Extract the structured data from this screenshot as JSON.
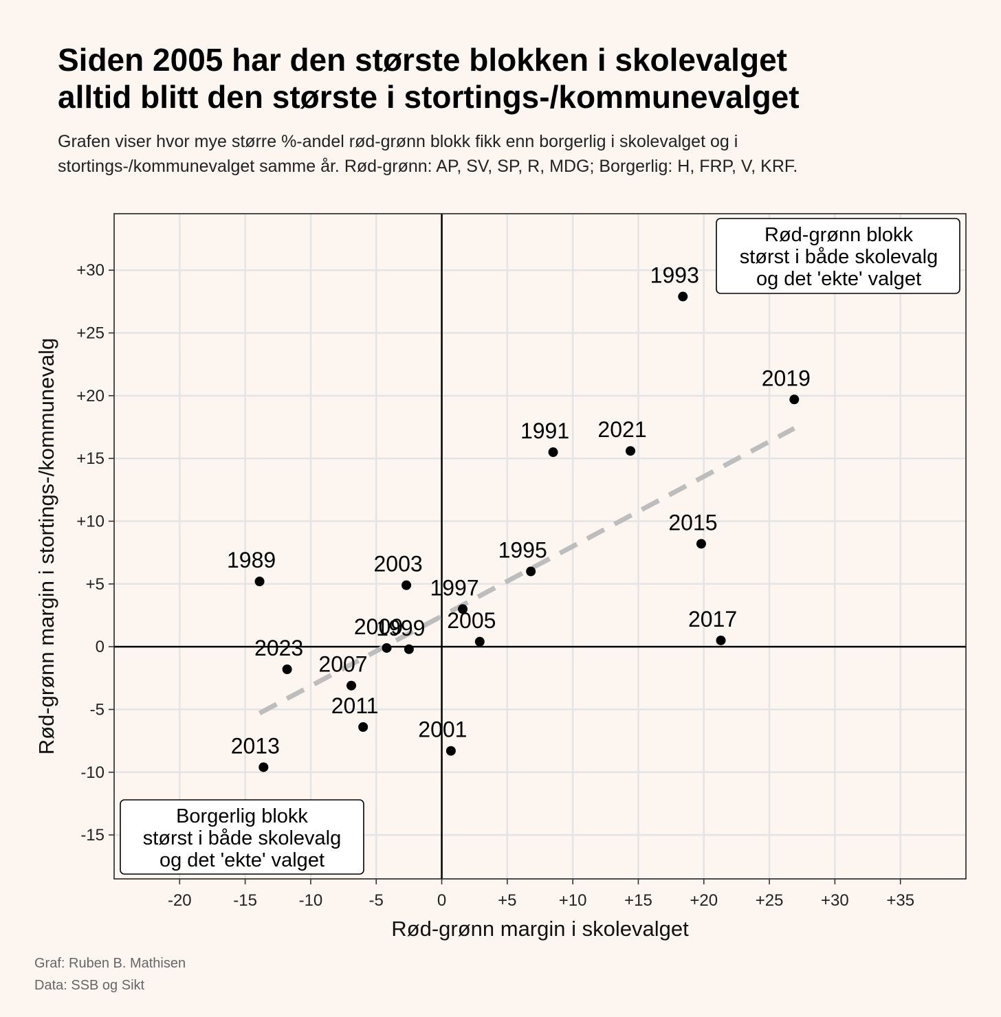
{
  "title": {
    "line1": "Siden 2005 har den største blokken i skolevalget",
    "line2": "alltid blitt den største i stortings-/kommunevalget"
  },
  "subtitle": {
    "line1": "Grafen viser hvor mye større %-andel rød-grønn blokk fikk enn borgerlig i skolevalget og i",
    "line2": "stortings-/kommunevalget samme år. Rød-grønn: AP, SV, SP, R, MDG; Borgerlig: H, FRP, V, KRF."
  },
  "caption": {
    "author": "Graf: Ruben B. Mathisen",
    "source": "Data: SSB og Sikt"
  },
  "chart_data": {
    "type": "scatter",
    "xlabel": "Rød-grønn margin i skolevalget",
    "ylabel": "Rød-grønn margin i stortings-/kommunevalg",
    "xlim": [
      -25,
      40
    ],
    "ylim": [
      -18.5,
      34.5
    ],
    "xticks": [
      -20,
      -15,
      -10,
      -5,
      0,
      5,
      10,
      15,
      20,
      25,
      30,
      35
    ],
    "xtick_labels": [
      "-20",
      "-15",
      "-10",
      "-5",
      "0",
      "+5",
      "+10",
      "+15",
      "+20",
      "+25",
      "+30",
      "+35"
    ],
    "yticks": [
      -15,
      -10,
      -5,
      0,
      5,
      10,
      15,
      20,
      25,
      30
    ],
    "ytick_labels": [
      "-15",
      "-10",
      "-5",
      "0",
      "+5",
      "+10",
      "+15",
      "+20",
      "+25",
      "+30"
    ],
    "grid": true,
    "points": [
      {
        "label": "1989",
        "x": -13.9,
        "y": 5.2
      },
      {
        "label": "1991",
        "x": 8.5,
        "y": 15.5
      },
      {
        "label": "1993",
        "x": 18.4,
        "y": 27.9
      },
      {
        "label": "1995",
        "x": 6.8,
        "y": 6.0
      },
      {
        "label": "1997",
        "x": 1.6,
        "y": 3.0
      },
      {
        "label": "1999",
        "x": -2.5,
        "y": -0.2
      },
      {
        "label": "2001",
        "x": 0.7,
        "y": -8.3
      },
      {
        "label": "2003",
        "x": -2.7,
        "y": 4.9
      },
      {
        "label": "2005",
        "x": 2.9,
        "y": 0.4
      },
      {
        "label": "2007",
        "x": -6.9,
        "y": -3.1
      },
      {
        "label": "2009",
        "x": -4.2,
        "y": -0.1
      },
      {
        "label": "2011",
        "x": -6.0,
        "y": -6.4
      },
      {
        "label": "2013",
        "x": -13.6,
        "y": -9.6
      },
      {
        "label": "2015",
        "x": 19.8,
        "y": 8.2
      },
      {
        "label": "2017",
        "x": 21.3,
        "y": 0.5
      },
      {
        "label": "2019",
        "x": 26.9,
        "y": 19.7
      },
      {
        "label": "2021",
        "x": 14.4,
        "y": 15.6
      },
      {
        "label": "2023",
        "x": -11.8,
        "y": -1.8
      }
    ],
    "trend_line": {
      "x1": -13.9,
      "y1": -5.3,
      "x2": 26.9,
      "y2": 17.4,
      "color": "#bdbdbd",
      "style": "dashed"
    },
    "annotations": [
      {
        "position": "top-right",
        "lines": [
          "Rød-grønn blokk",
          "størst i både skolevalg",
          "og det 'ekte' valget"
        ]
      },
      {
        "position": "bottom-left",
        "lines": [
          "Borgerlig blokk",
          "størst i både skolevalg",
          "og det 'ekte' valget"
        ]
      }
    ],
    "colors": {
      "background": "#fcf5f0",
      "grid": "#e4e4e4",
      "point": "#000000",
      "trend": "#bdbdbd"
    }
  }
}
